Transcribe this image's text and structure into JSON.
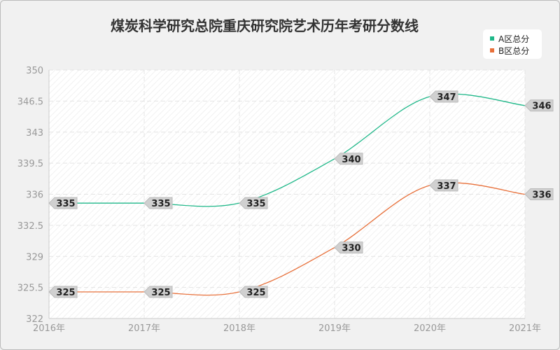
{
  "chart_data": {
    "type": "line",
    "title": "煤炭科学研究总院重庆研究院艺术历年考研分数线",
    "categories": [
      "2016年",
      "2017年",
      "2018年",
      "2019年",
      "2020年",
      "2021年"
    ],
    "series": [
      {
        "name": "A区总分",
        "color": "#1fb889",
        "values": [
          335,
          335,
          335,
          340,
          347,
          346
        ]
      },
      {
        "name": "B区总分",
        "color": "#e8703a",
        "values": [
          325,
          325,
          325,
          330,
          337,
          336
        ]
      }
    ],
    "yticks": [
      "322",
      "325.5",
      "329",
      "332.5",
      "336",
      "339.5",
      "343",
      "346.5",
      "350"
    ],
    "ylim": [
      322,
      350
    ],
    "xlabel": "",
    "ylabel": "",
    "grid": true,
    "legend": "top-right"
  }
}
